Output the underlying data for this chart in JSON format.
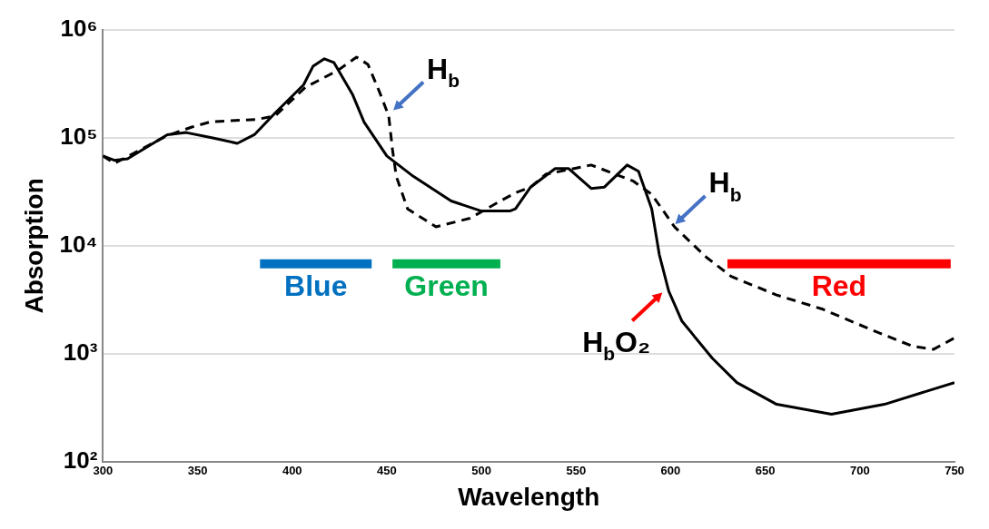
{
  "chart_data": {
    "type": "line",
    "xlabel": "Wavelength",
    "ylabel": "Absorption",
    "log": "y",
    "grid": "y",
    "xlim": [
      300,
      750
    ],
    "xticks": [
      300,
      350,
      400,
      450,
      500,
      550,
      600,
      650,
      700,
      750
    ],
    "ylim": [
      100,
      1000000
    ],
    "yticks": [
      {
        "value": 100,
        "label": "10²"
      },
      {
        "value": 1000,
        "label": "10³"
      },
      {
        "value": 10000,
        "label": "10⁴"
      },
      {
        "value": 100000,
        "label": "10⁵"
      },
      {
        "value": 1000000,
        "label": "10⁶"
      }
    ],
    "series": [
      {
        "color": "#000000",
        "line_style": "solid",
        "x": [
          300,
          306,
          313,
          334,
          344,
          358,
          371,
          380,
          391,
          406,
          411,
          417,
          422,
          432,
          438,
          450,
          464,
          484,
          500,
          515,
          518,
          526,
          539,
          546,
          558,
          565,
          577,
          583,
          590,
          594,
          599,
          606,
          622,
          635,
          656,
          685,
          713,
          750
        ],
        "values": [
          68000,
          62000,
          64000,
          107000,
          112000,
          100000,
          89000,
          107000,
          170000,
          310000,
          460000,
          540000,
          500000,
          250000,
          140000,
          68000,
          44000,
          26000,
          21000,
          21000,
          22000,
          35000,
          52000,
          52000,
          34000,
          35000,
          56000,
          49000,
          22000,
          8300,
          3800,
          2000,
          910,
          540,
          340,
          275,
          340,
          540
        ]
      },
      {
        "color": "#000000",
        "line_style": "dashed",
        "x": [
          300,
          306,
          334,
          347,
          357,
          381,
          391,
          407,
          424,
          434,
          440,
          446,
          451,
          453,
          455,
          461,
          476,
          494,
          510,
          518,
          526,
          534,
          558,
          580,
          590,
          602,
          619,
          632,
          656,
          680,
          705,
          728,
          739,
          750
        ],
        "values": [
          68000,
          58000,
          105000,
          126000,
          141000,
          148000,
          160000,
          295000,
          420000,
          560000,
          480000,
          270000,
          160000,
          78000,
          44000,
          22000,
          15000,
          18000,
          26000,
          31000,
          35000,
          46000,
          56000,
          40000,
          30000,
          15000,
          7800,
          5200,
          3500,
          2600,
          1700,
          1170,
          1100,
          1400
        ]
      },
      {
        "name": "Blue",
        "color": "#0070c0",
        "x": [
          383,
          442
        ],
        "values": [
          6800,
          6800
        ]
      },
      {
        "name": "Green",
        "color": "#00b050",
        "x": [
          453,
          510
        ],
        "values": [
          6800,
          6800
        ]
      },
      {
        "name": "Red",
        "color": "#ff0000",
        "x": [
          630,
          748
        ],
        "values": [
          6800,
          6800
        ]
      }
    ],
    "annotations": [
      {
        "text": "H$_{b}$",
        "x": 452,
        "y": 170000
      },
      {
        "text": "H$_{b}$",
        "x": 601,
        "y": 15000
      },
      {
        "text": "H$_{b}$O₂",
        "x": 597,
        "y": 3900
      }
    ]
  }
}
